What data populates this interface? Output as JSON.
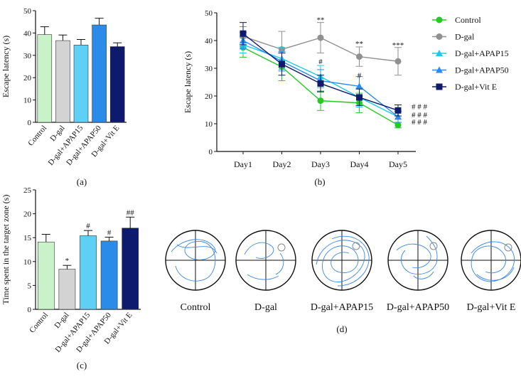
{
  "chart_data": [
    {
      "id": "a",
      "type": "bar",
      "panel_label": "(a)",
      "title": "",
      "xlabel": "",
      "ylabel": "Escape latency (s)",
      "ylim": [
        0,
        50
      ],
      "yticks": [
        0,
        10,
        20,
        30,
        40,
        50
      ],
      "categories": [
        "Control",
        "D-gal",
        "D-gal+APAP15",
        "D-gal+APAP50",
        "D-gal+Vit E"
      ],
      "values": [
        39.3,
        36.6,
        34.6,
        43.6,
        33.9
      ],
      "errors": [
        3.5,
        2.5,
        2.5,
        3.0,
        1.7
      ],
      "colors": [
        "#c8f2c8",
        "#d3d3d3",
        "#5fd0f5",
        "#2a8ce8",
        "#0d1a6e"
      ]
    },
    {
      "id": "b",
      "type": "line",
      "panel_label": "(b)",
      "title": "",
      "xlabel": "",
      "ylabel": "Escape latency (s)",
      "ylim": [
        0,
        50
      ],
      "yticks": [
        0,
        10,
        20,
        30,
        40,
        50
      ],
      "x": [
        "Day1",
        "Day2",
        "Day3",
        "Day4",
        "Day5"
      ],
      "series": [
        {
          "name": "Control",
          "color": "#22cc22",
          "marker": "circle",
          "values": [
            37.5,
            30.5,
            18.3,
            17.5,
            9.5
          ],
          "errors": [
            3.5,
            5.0,
            3.5,
            3.5,
            1.0
          ]
        },
        {
          "name": "D-gal",
          "color": "#909090",
          "marker": "circle",
          "values": [
            41.5,
            36.8,
            41.0,
            34.2,
            32.5
          ],
          "errors": [
            3.5,
            6.5,
            5.5,
            3.5,
            5.0
          ]
        },
        {
          "name": "D-gal+APAP15",
          "color": "#1ec8ec",
          "marker": "triangle",
          "values": [
            38.5,
            33.5,
            27.0,
            19.5,
            12.5
          ],
          "errors": [
            3.0,
            4.0,
            4.0,
            3.5,
            2.0
          ]
        },
        {
          "name": "D-gal+APAP50",
          "color": "#2a8ce8",
          "marker": "triangle",
          "values": [
            40.0,
            32.5,
            25.5,
            23.5,
            12.5
          ],
          "errors": [
            3.0,
            3.5,
            4.0,
            3.5,
            2.0
          ]
        },
        {
          "name": "D-gal+Vit E",
          "color": "#0d1a6e",
          "marker": "square",
          "values": [
            42.5,
            31.5,
            24.5,
            19.5,
            14.8
          ],
          "errors": [
            4.0,
            4.0,
            3.0,
            3.0,
            2.0
          ]
        }
      ],
      "annotations": [
        {
          "day": "Day3",
          "text": "**",
          "y": 46.5
        },
        {
          "day": "Day4",
          "text": "**",
          "y": 38.0
        },
        {
          "day": "Day5",
          "text": "***",
          "y": 37.5
        },
        {
          "day": "Day3",
          "text": "#",
          "y": 31.5
        },
        {
          "day": "Day4",
          "text": "#",
          "y": 26.5
        },
        {
          "day": "Day5",
          "text": "# # #",
          "y": 15.2
        },
        {
          "day": "Day5",
          "text": "# # #",
          "y": 12.3
        },
        {
          "day": "Day5",
          "text": "# # #",
          "y": 9.8
        }
      ]
    },
    {
      "id": "c",
      "type": "bar",
      "panel_label": "(c)",
      "title": "",
      "xlabel": "",
      "ylabel": "Time spent in the target zone (s)",
      "ylim": [
        0,
        25
      ],
      "yticks": [
        0,
        5,
        10,
        15,
        20,
        25
      ],
      "categories": [
        "Control",
        "D-gal",
        "D-gal+APAP15",
        "D-gal+APAP50",
        "D-gal+Vit E"
      ],
      "values": [
        14.1,
        8.4,
        15.4,
        14.3,
        17.0
      ],
      "errors": [
        1.6,
        0.8,
        1.1,
        0.8,
        2.3
      ],
      "colors": [
        "#c8f2c8",
        "#d3d3d3",
        "#5fd0f5",
        "#2a8ce8",
        "#0d1a6e"
      ],
      "annotations": [
        "",
        "*",
        "#",
        "#",
        "##"
      ]
    }
  ],
  "maze_panel": {
    "panel_label": "(d)",
    "labels": [
      "Control",
      "D-gal",
      "D-gal+APAP15",
      "D-gal+APAP50",
      "D-gal+Vit E"
    ]
  }
}
